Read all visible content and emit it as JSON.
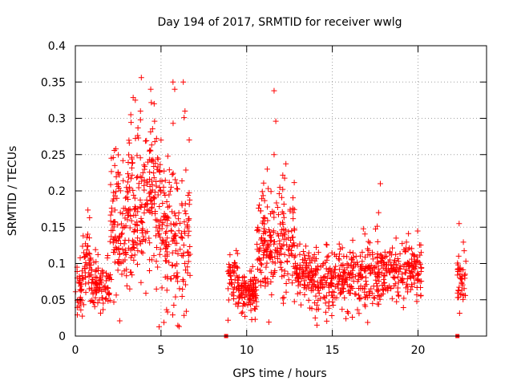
{
  "chart_data": {
    "type": "scatter",
    "title": "Day 194 of 2017, SRMTID for receiver wwlg",
    "xlabel": "GPS time / hours",
    "ylabel": "SRMTID / TECUs",
    "xlim": [
      0,
      24
    ],
    "ylim": [
      0,
      0.4
    ],
    "xticks": [
      0,
      5,
      10,
      15,
      20
    ],
    "yticks": [
      0,
      0.05,
      0.1,
      0.15,
      0.2,
      0.25,
      0.3,
      0.35,
      0.4
    ],
    "xtick_labels": [
      "0",
      "5",
      "10",
      "15",
      "20"
    ],
    "ytick_labels": [
      "0",
      "0.05",
      "0.1",
      "0.15",
      "0.2",
      "0.25",
      "0.3",
      "0.35",
      "0.4"
    ],
    "grid": true,
    "marker": "plus",
    "color": "#ff0000",
    "zero_markers": {
      "x": [
        8.8,
        22.3
      ],
      "y": [
        0,
        0
      ]
    },
    "clusters": [
      {
        "x_range": [
          0.0,
          0.4
        ],
        "center": 0.065,
        "spread": 0.025,
        "count": 30
      },
      {
        "x_range": [
          0.4,
          0.9
        ],
        "center": 0.1,
        "spread": 0.03,
        "count": 45
      },
      {
        "x_range": [
          0.9,
          2.0
        ],
        "center": 0.07,
        "spread": 0.02,
        "count": 90
      },
      {
        "x_range": [
          2.0,
          3.0
        ],
        "center": 0.15,
        "spread": 0.06,
        "count": 100
      },
      {
        "x_range": [
          3.0,
          4.0
        ],
        "center": 0.18,
        "spread": 0.07,
        "count": 110
      },
      {
        "x_range": [
          4.0,
          5.0
        ],
        "center": 0.19,
        "spread": 0.07,
        "count": 110
      },
      {
        "x_range": [
          5.0,
          5.8
        ],
        "center": 0.14,
        "spread": 0.07,
        "count": 80
      },
      {
        "x_range": [
          5.8,
          6.7
        ],
        "center": 0.13,
        "spread": 0.08,
        "count": 80
      },
      {
        "x_range": [
          8.9,
          9.5
        ],
        "center": 0.08,
        "spread": 0.025,
        "count": 45
      },
      {
        "x_range": [
          9.5,
          10.6
        ],
        "center": 0.06,
        "spread": 0.018,
        "count": 110
      },
      {
        "x_range": [
          10.6,
          11.4
        ],
        "center": 0.12,
        "spread": 0.05,
        "count": 90
      },
      {
        "x_range": [
          11.4,
          12.8
        ],
        "center": 0.13,
        "spread": 0.045,
        "count": 120
      },
      {
        "x_range": [
          12.8,
          14.0
        ],
        "center": 0.085,
        "spread": 0.025,
        "count": 100
      },
      {
        "x_range": [
          14.0,
          16.0
        ],
        "center": 0.075,
        "spread": 0.025,
        "count": 160
      },
      {
        "x_range": [
          16.0,
          18.0
        ],
        "center": 0.085,
        "spread": 0.03,
        "count": 160
      },
      {
        "x_range": [
          18.0,
          20.2
        ],
        "center": 0.09,
        "spread": 0.025,
        "count": 170
      },
      {
        "x_range": [
          22.3,
          22.8
        ],
        "center": 0.08,
        "spread": 0.025,
        "count": 40
      }
    ],
    "peaks": [
      {
        "x": 3.5,
        "y": 0.325
      },
      {
        "x": 3.8,
        "y": 0.31
      },
      {
        "x": 4.4,
        "y": 0.34
      },
      {
        "x": 4.6,
        "y": 0.32
      },
      {
        "x": 5.0,
        "y": 0.27
      },
      {
        "x": 5.7,
        "y": 0.35
      },
      {
        "x": 5.8,
        "y": 0.34
      },
      {
        "x": 6.3,
        "y": 0.35
      },
      {
        "x": 6.4,
        "y": 0.31
      },
      {
        "x": 2.1,
        "y": 0.245
      },
      {
        "x": 2.3,
        "y": 0.235
      },
      {
        "x": 11.6,
        "y": 0.338
      },
      {
        "x": 11.7,
        "y": 0.296
      },
      {
        "x": 11.6,
        "y": 0.25
      },
      {
        "x": 11.2,
        "y": 0.23
      },
      {
        "x": 17.8,
        "y": 0.21
      },
      {
        "x": 17.7,
        "y": 0.17
      },
      {
        "x": 22.4,
        "y": 0.155
      },
      {
        "x": 14.1,
        "y": 0.015
      },
      {
        "x": 14.0,
        "y": 0.025
      },
      {
        "x": 9.9,
        "y": 0.027
      }
    ]
  }
}
